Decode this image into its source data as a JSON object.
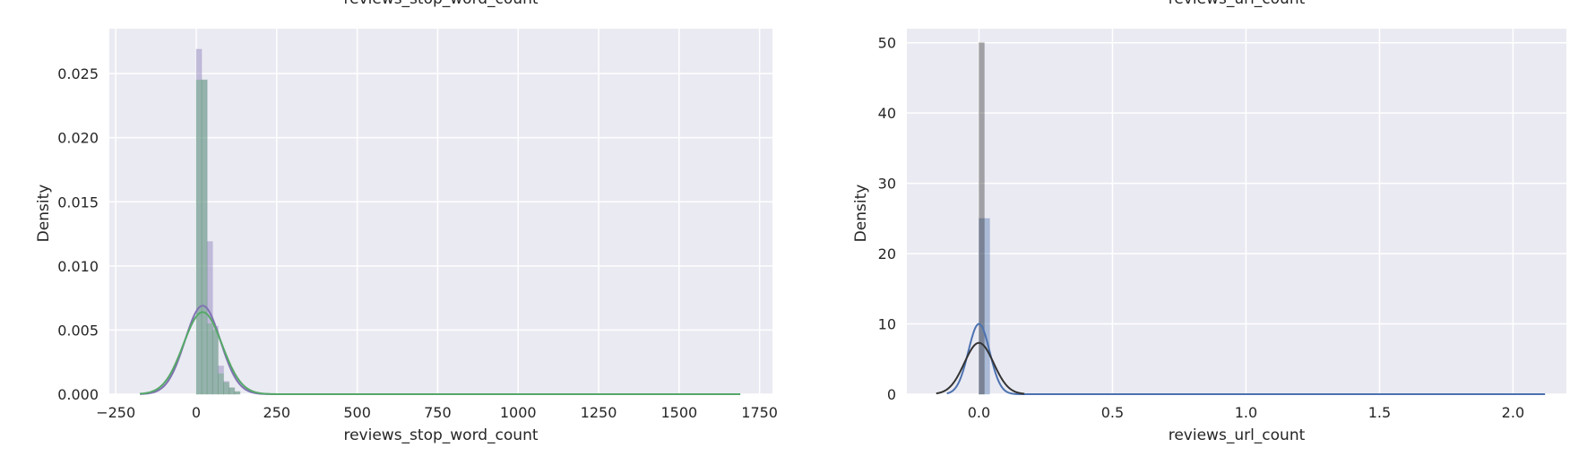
{
  "figure": {
    "theme": {
      "background": "#eaeaf2",
      "grid": "#ffffff",
      "text": "#262626"
    }
  },
  "chart_data": [
    {
      "type": "histogram",
      "title": "reviews_stop_word_count",
      "xlabel": "reviews_stop_word_count",
      "ylabel": "Density",
      "xlim": [
        -270,
        1790
      ],
      "ylim": [
        0,
        0.0285
      ],
      "xticks": [
        -250,
        0,
        250,
        500,
        750,
        1000,
        1250,
        1500,
        1750
      ],
      "xtick_labels": [
        "−250",
        "0",
        "250",
        "500",
        "750",
        "1000",
        "1250",
        "1500",
        "1750"
      ],
      "yticks": [
        0,
        0.005,
        0.01,
        0.015,
        0.02,
        0.025
      ],
      "ytick_labels": [
        "0.000",
        "0.005",
        "0.010",
        "0.015",
        "0.020",
        "0.025"
      ],
      "grid": true,
      "series": [
        {
          "color": "#8172b3",
          "bin_width": 17,
          "bins": [
            [
              0,
              0.0269
            ],
            [
              17,
              0.0245
            ],
            [
              34,
              0.0119
            ],
            [
              51,
              0.0053
            ],
            [
              68,
              0.0022
            ],
            [
              85,
              0.001
            ],
            [
              102,
              0.0005
            ],
            [
              119,
              0.0002
            ]
          ],
          "kde": {
            "mean": 20,
            "sd": 55,
            "peak": 0.0069,
            "range": [
              -175,
              1690
            ]
          }
        },
        {
          "color": "#55a868",
          "bin_width": 17,
          "bins": [
            [
              0,
              0.0245
            ],
            [
              17,
              0.0245
            ],
            [
              34,
              0.0055
            ],
            [
              51,
              0.005
            ],
            [
              68,
              0.0016
            ],
            [
              85,
              0.0009
            ],
            [
              102,
              0.0005
            ],
            [
              119,
              0.0002
            ]
          ],
          "kde": {
            "mean": 20,
            "sd": 60,
            "peak": 0.0064,
            "range": [
              -175,
              1690
            ]
          }
        }
      ]
    },
    {
      "type": "histogram",
      "title": "reviews_url_count",
      "xlabel": "reviews_url_count",
      "ylabel": "Density",
      "xlim": [
        -0.27,
        2.2
      ],
      "ylim": [
        0,
        52
      ],
      "xticks": [
        0,
        0.5,
        1,
        1.5,
        2
      ],
      "xtick_labels": [
        "0.0",
        "0.5",
        "1.0",
        "1.5",
        "2.0"
      ],
      "yticks": [
        0,
        10,
        20,
        30,
        40,
        50
      ],
      "ytick_labels": [
        "0",
        "10",
        "20",
        "30",
        "40",
        "50"
      ],
      "grid": true,
      "series": [
        {
          "color": "#4c72b0",
          "bin_width": 0.04,
          "bins": [
            [
              0,
              25
            ]
          ],
          "kde": {
            "mean": 0,
            "sd": 0.04,
            "peak": 10,
            "range": [
              -0.12,
              2.12
            ]
          }
        },
        {
          "color": "#333333",
          "bin_width": 0.02,
          "bins": [
            [
              0,
              50
            ]
          ],
          "kde": {
            "mean": 0,
            "sd": 0.055,
            "peak": 7.3,
            "range": [
              -0.16,
              0.17
            ]
          }
        }
      ]
    }
  ]
}
